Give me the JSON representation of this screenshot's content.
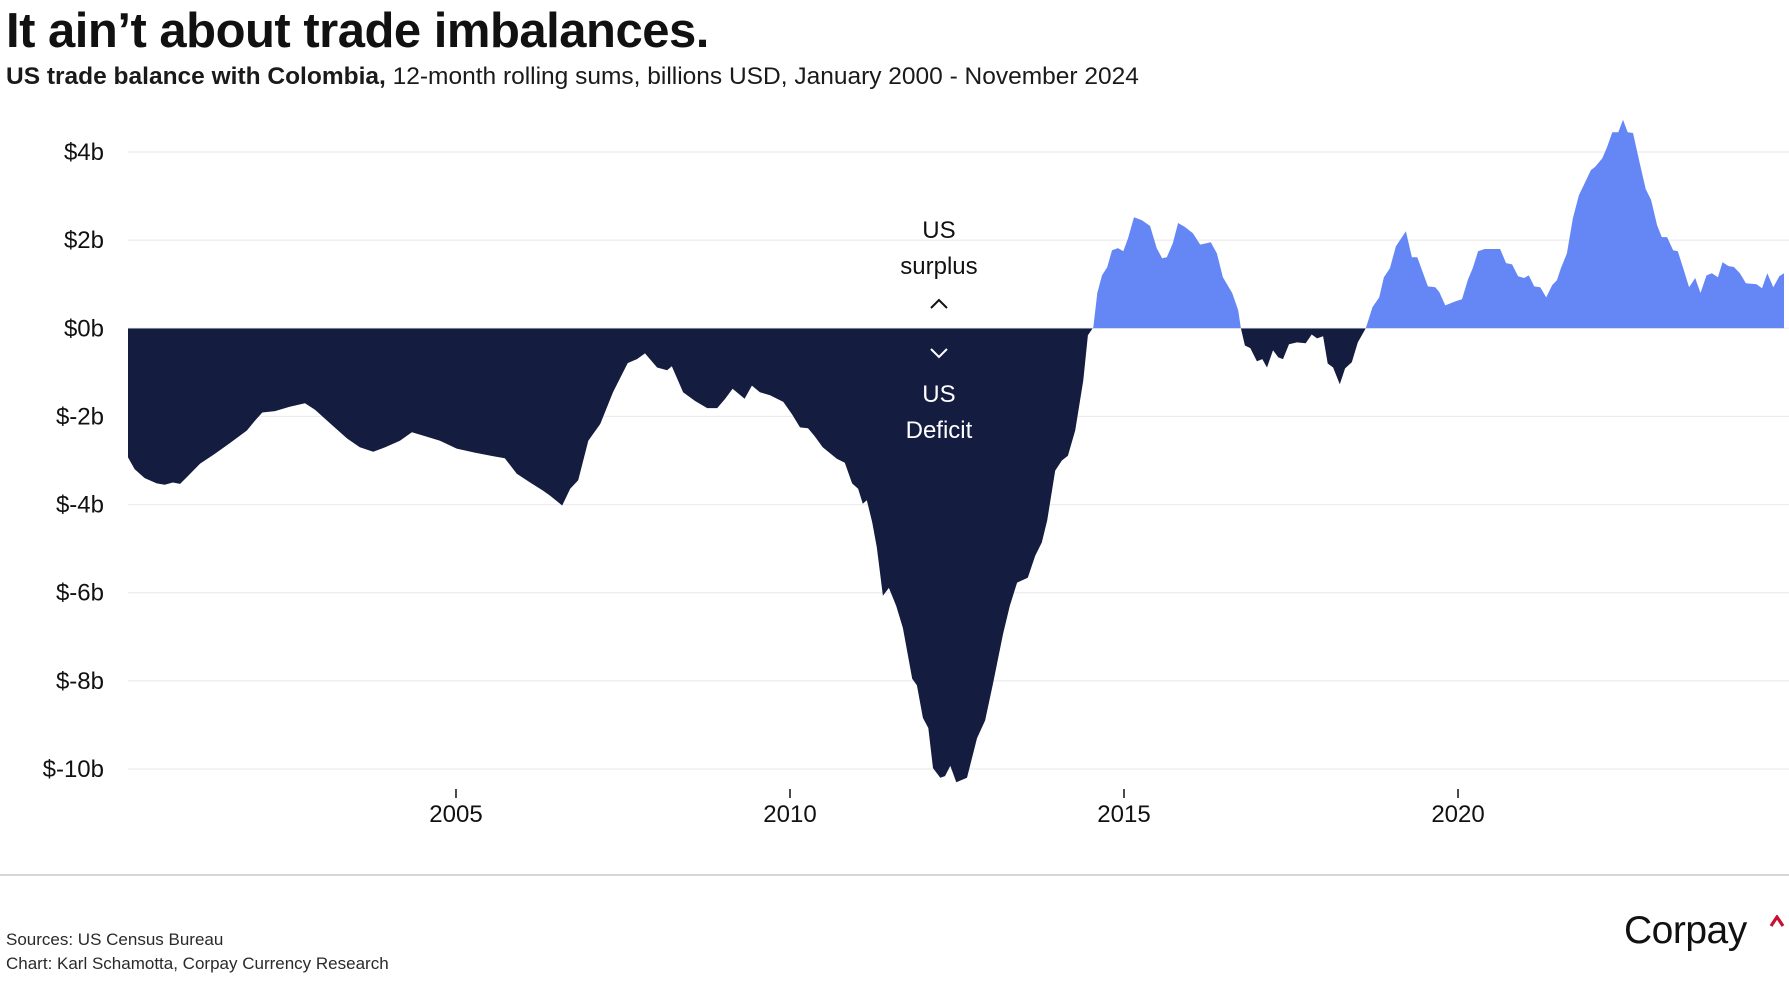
{
  "header": {
    "title": "It ain’t about trade imbalances.",
    "subtitle_bold": "US trade balance with Colombia,",
    "subtitle_rest": " 12-month rolling sums, billions USD, January 2000 -  November 2024"
  },
  "footer": {
    "sources": "Sources: US Census Bureau",
    "credit": "Chart: Karl Schamotta, Corpay Currency Research"
  },
  "logo": {
    "text": "Corpay",
    "caret_color": "#c8102e"
  },
  "colors": {
    "surplus": "#6586f5",
    "deficit": "#141c40",
    "grid": "#ececec",
    "text": "#111111"
  },
  "chart_data": {
    "type": "area",
    "title": "It ain’t about trade imbalances.",
    "subtitle": "US trade balance with Colombia, 12-month rolling sums, billions USD, January 2000 -  November 2024",
    "xlabel": "",
    "ylabel": "",
    "xlim": [
      2000.09,
      2024.88
    ],
    "ylim": [
      -10,
      4
    ],
    "grid": true,
    "legend": "none",
    "x_ticks": [
      {
        "value": 2005,
        "label": "2005"
      },
      {
        "value": 2010,
        "label": "2010"
      },
      {
        "value": 2015,
        "label": "2015"
      },
      {
        "value": 2020,
        "label": "2020"
      }
    ],
    "y_ticks": [
      {
        "value": 4,
        "label": "$4b"
      },
      {
        "value": 2,
        "label": "$2b"
      },
      {
        "value": 0,
        "label": "$0b"
      },
      {
        "value": -2,
        "label": "$-2b"
      },
      {
        "value": -4,
        "label": "$-4b"
      },
      {
        "value": -6,
        "label": "$-6b"
      },
      {
        "value": -8,
        "label": "$-8b"
      },
      {
        "value": -10,
        "label": "$-10b"
      }
    ],
    "annotations": {
      "surplus_lines": [
        "US",
        "surplus"
      ],
      "deficit_lines": [
        "US",
        "Deficit"
      ],
      "surplus_arrow": "^",
      "deficit_arrow": "v",
      "at_year": 2012.23
    },
    "series": [
      {
        "name": "US trade balance with Colombia",
        "x": [
          2000.09,
          2000.19,
          2000.34,
          2000.52,
          2000.64,
          2000.76,
          2000.87,
          2000.99,
          2001.17,
          2001.39,
          2001.62,
          2001.87,
          2001.99,
          2002.1,
          2002.29,
          2002.51,
          2002.74,
          2002.89,
          2003.11,
          2003.37,
          2003.56,
          2003.76,
          2003.94,
          2004.16,
          2004.34,
          2004.54,
          2004.76,
          2005.01,
          2005.28,
          2005.55,
          2005.73,
          2005.91,
          2006.11,
          2006.3,
          2006.41,
          2006.59,
          2006.71,
          2006.83,
          2006.98,
          2007.16,
          2007.35,
          2007.57,
          2007.71,
          2007.83,
          2008.01,
          2008.16,
          2008.23,
          2008.4,
          2008.58,
          2008.76,
          2008.91,
          2009.03,
          2009.14,
          2009.32,
          2009.43,
          2009.55,
          2009.7,
          2009.9,
          2010.03,
          2010.15,
          2010.27,
          2010.37,
          2010.49,
          2010.7,
          2010.82,
          2010.93,
          2011.02,
          2011.09,
          2011.15,
          2011.23,
          2011.3,
          2011.39,
          2011.48,
          2011.59,
          2011.69,
          2011.83,
          2011.9,
          2011.99,
          2012.07,
          2012.14,
          2012.25,
          2012.32,
          2012.4,
          2012.49,
          2012.65,
          2012.8,
          2012.92,
          2013.04,
          2013.19,
          2013.29,
          2013.4,
          2013.56,
          2013.67,
          2013.77,
          2013.85,
          2013.97,
          2014.07,
          2014.16,
          2014.27,
          2014.39,
          2014.46,
          2014.54,
          2014.6,
          2014.67,
          2014.75,
          2014.82,
          2014.91,
          2014.99,
          2015.06,
          2015.15,
          2015.27,
          2015.39,
          2015.49,
          2015.57,
          2015.64,
          2015.73,
          2015.81,
          2015.91,
          2016.03,
          2016.14,
          2016.3,
          2016.39,
          2016.48,
          2016.62,
          2016.71,
          2016.75,
          2016.81,
          2016.89,
          2016.99,
          2017.07,
          2017.14,
          2017.23,
          2017.31,
          2017.38,
          2017.47,
          2017.59,
          2017.72,
          2017.81,
          2017.89,
          2017.98,
          2018.05,
          2018.13,
          2018.23,
          2018.31,
          2018.41,
          2018.5,
          2018.62,
          2018.72,
          2018.82,
          2018.89,
          2018.98,
          2019.07,
          2019.22,
          2019.31,
          2019.39,
          2019.55,
          2019.66,
          2019.72,
          2019.81,
          2019.96,
          2020.06,
          2020.15,
          2020.22,
          2020.3,
          2020.4,
          2020.63,
          2020.72,
          2020.81,
          2020.9,
          2020.99,
          2021.06,
          2021.14,
          2021.23,
          2021.32,
          2021.41,
          2021.48,
          2021.54,
          2021.63,
          2021.72,
          2021.81,
          2021.9,
          2021.99,
          2022.05,
          2022.16,
          2022.23,
          2022.31,
          2022.4,
          2022.47,
          2022.54,
          2022.62,
          2022.72,
          2022.81,
          2022.89,
          2022.98,
          2023.05,
          2023.13,
          2023.22,
          2023.29,
          2023.38,
          2023.46,
          2023.55,
          2023.63,
          2023.72,
          2023.8,
          2023.89,
          2023.96,
          2024.05,
          2024.13,
          2024.22,
          2024.31,
          2024.47,
          2024.55,
          2024.63,
          2024.72,
          2024.81,
          2024.88
        ],
        "y": [
          -2.93,
          -3.2,
          -3.4,
          -3.52,
          -3.55,
          -3.5,
          -3.53,
          -3.35,
          -3.07,
          -2.85,
          -2.6,
          -2.32,
          -2.1,
          -1.91,
          -1.88,
          -1.78,
          -1.7,
          -1.85,
          -2.15,
          -2.5,
          -2.7,
          -2.8,
          -2.7,
          -2.55,
          -2.36,
          -2.45,
          -2.55,
          -2.73,
          -2.82,
          -2.9,
          -2.95,
          -3.3,
          -3.5,
          -3.68,
          -3.8,
          -4.02,
          -3.64,
          -3.45,
          -2.55,
          -2.17,
          -1.45,
          -0.79,
          -0.7,
          -0.57,
          -0.89,
          -0.95,
          -0.86,
          -1.45,
          -1.65,
          -1.81,
          -1.81,
          -1.6,
          -1.37,
          -1.6,
          -1.3,
          -1.45,
          -1.52,
          -1.67,
          -1.95,
          -2.25,
          -2.27,
          -2.45,
          -2.7,
          -2.96,
          -3.05,
          -3.52,
          -3.64,
          -3.98,
          -3.9,
          -4.4,
          -4.97,
          -6.07,
          -5.89,
          -6.3,
          -6.8,
          -7.95,
          -8.1,
          -8.84,
          -9.07,
          -9.98,
          -10.2,
          -10.16,
          -9.93,
          -10.3,
          -10.2,
          -9.3,
          -8.9,
          -8.05,
          -6.93,
          -6.3,
          -5.77,
          -5.66,
          -5.16,
          -4.86,
          -4.36,
          -3.23,
          -3.0,
          -2.89,
          -2.32,
          -1.18,
          -0.16,
          0.02,
          0.8,
          1.2,
          1.39,
          1.77,
          1.82,
          1.75,
          2.04,
          2.52,
          2.45,
          2.32,
          1.82,
          1.59,
          1.61,
          1.93,
          2.39,
          2.3,
          2.16,
          1.9,
          1.95,
          1.7,
          1.16,
          0.8,
          0.41,
          0,
          -0.39,
          -0.45,
          -0.75,
          -0.7,
          -0.89,
          -0.5,
          -0.66,
          -0.7,
          -0.36,
          -0.32,
          -0.34,
          -0.14,
          -0.23,
          -0.18,
          -0.8,
          -0.89,
          -1.27,
          -0.91,
          -0.77,
          -0.32,
          0,
          0.48,
          0.7,
          1.16,
          1.36,
          1.86,
          2.2,
          1.61,
          1.61,
          0.95,
          0.93,
          0.82,
          0.52,
          0.61,
          0.66,
          1.11,
          1.36,
          1.75,
          1.8,
          1.8,
          1.48,
          1.45,
          1.18,
          1.14,
          1.2,
          0.95,
          0.93,
          0.7,
          0.98,
          1.09,
          1.36,
          1.7,
          2.5,
          3.02,
          3.3,
          3.59,
          3.66,
          3.86,
          4.11,
          4.45,
          4.45,
          4.73,
          4.45,
          4.43,
          3.75,
          3.16,
          2.91,
          2.34,
          2.07,
          2.07,
          1.77,
          1.75,
          1.32,
          0.93,
          1.14,
          0.8,
          1.2,
          1.25,
          1.16,
          1.5,
          1.41,
          1.39,
          1.25,
          1.02,
          1.0,
          0.91,
          1.25,
          0.93,
          1.18,
          1.25
        ]
      }
    ]
  }
}
